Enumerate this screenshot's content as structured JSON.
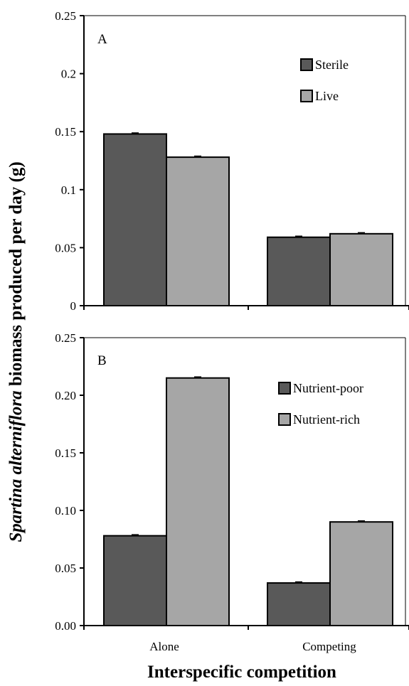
{
  "chart_data": [
    {
      "type": "bar",
      "panel": "A",
      "categories": [
        "Alone",
        "Competing"
      ],
      "series": [
        {
          "name": "Sterile",
          "color": "#595959",
          "values": [
            0.148,
            0.059
          ]
        },
        {
          "name": "Live",
          "color": "#a6a6a6",
          "values": [
            0.128,
            0.062
          ]
        }
      ],
      "ylim": [
        0,
        0.25
      ],
      "yticks": [
        "0",
        "0.05",
        "0.1",
        "0.15",
        "0.2",
        "0.25"
      ],
      "yticks_values": [
        0,
        0.05,
        0.1,
        0.15,
        0.2,
        0.25
      ],
      "legend_placement": "top-right",
      "grid": false
    },
    {
      "type": "bar",
      "panel": "B",
      "categories": [
        "Alone",
        "Competing"
      ],
      "series": [
        {
          "name": "Nutrient-poor",
          "color": "#595959",
          "values": [
            0.078,
            0.037
          ]
        },
        {
          "name": "Nutrient-rich",
          "color": "#a6a6a6",
          "values": [
            0.215,
            0.09
          ]
        }
      ],
      "ylim": [
        0,
        0.25
      ],
      "yticks": [
        "0.00",
        "0.05",
        "0.10",
        "0.15",
        "0.20",
        "0.25"
      ],
      "yticks_values": [
        0,
        0.05,
        0.1,
        0.15,
        0.2,
        0.25
      ],
      "legend_placement": "top-right",
      "grid": false
    }
  ],
  "ylabel_italic": "Spartina alterniflora",
  "ylabel_rest": " biomass produced per day (g)",
  "xlabel": "Interspecific competition",
  "x_tick_labels": [
    "Alone",
    "Competing"
  ]
}
